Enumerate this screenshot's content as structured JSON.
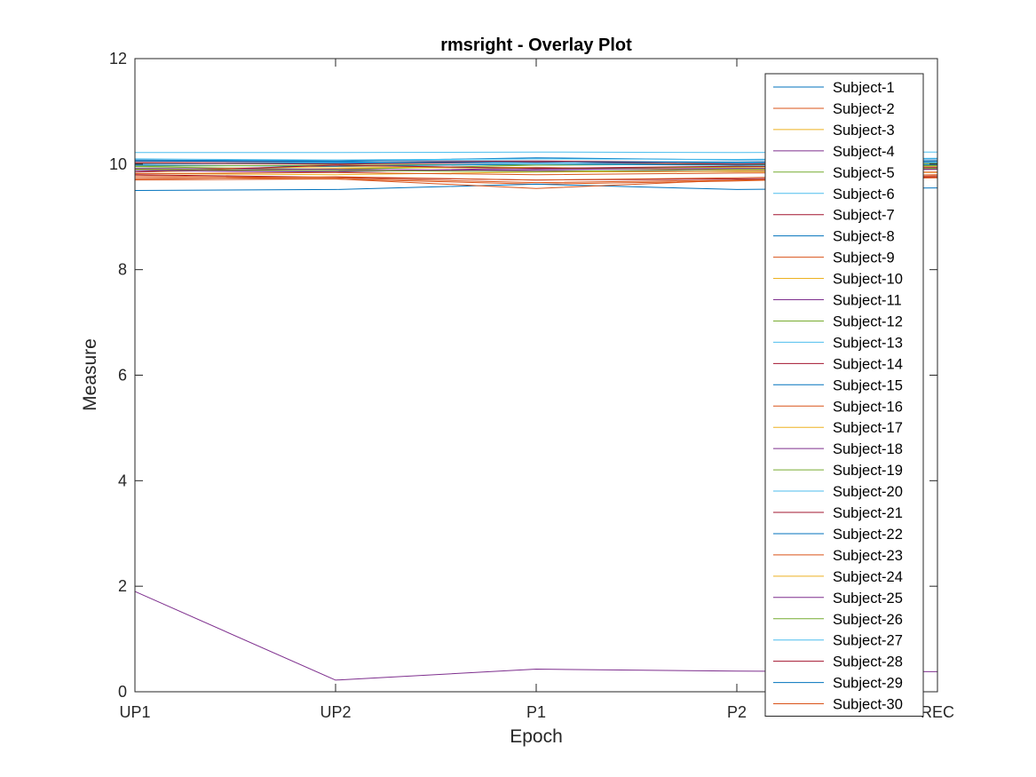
{
  "chart_data": {
    "type": "line",
    "title": "rmsright - Overlay Plot",
    "xlabel": "Epoch",
    "ylabel": "Measure",
    "categories": [
      "UP1",
      "UP2",
      "P1",
      "P2",
      "REC"
    ],
    "ylim": [
      0,
      12
    ],
    "yticks": [
      0,
      2,
      4,
      6,
      8,
      10,
      12
    ],
    "grid": false,
    "legend_position": "top-right",
    "series": [
      {
        "name": "Subject-1",
        "color": "#0072BD",
        "values": [
          10.0,
          10.02,
          10.04,
          10.0,
          10.03
        ]
      },
      {
        "name": "Subject-2",
        "color": "#D95319",
        "values": [
          9.75,
          9.72,
          9.62,
          9.68,
          9.78
        ]
      },
      {
        "name": "Subject-3",
        "color": "#EDB120",
        "values": [
          9.85,
          9.92,
          9.94,
          9.88,
          9.9
        ]
      },
      {
        "name": "Subject-4",
        "color": "#7E2F8E",
        "values": [
          9.88,
          9.85,
          9.93,
          9.9,
          9.92
        ]
      },
      {
        "name": "Subject-5",
        "color": "#77AC30",
        "values": [
          9.95,
          9.9,
          9.98,
          10.0,
          9.97
        ]
      },
      {
        "name": "Subject-6",
        "color": "#4DBEEE",
        "values": [
          10.05,
          10.08,
          10.06,
          10.04,
          10.07
        ]
      },
      {
        "name": "Subject-7",
        "color": "#A2142F",
        "values": [
          9.8,
          9.75,
          9.7,
          9.72,
          9.76
        ]
      },
      {
        "name": "Subject-8",
        "color": "#0072BD",
        "values": [
          9.5,
          9.52,
          9.62,
          9.52,
          9.55
        ]
      },
      {
        "name": "Subject-9",
        "color": "#D95319",
        "values": [
          9.7,
          9.72,
          9.54,
          9.7,
          9.74
        ]
      },
      {
        "name": "Subject-10",
        "color": "#EDB120",
        "values": [
          9.9,
          9.95,
          9.92,
          9.94,
          9.96
        ]
      },
      {
        "name": "Subject-11",
        "color": "#7E2F8E",
        "values": [
          9.92,
          9.9,
          9.88,
          9.86,
          9.9
        ]
      },
      {
        "name": "Subject-12",
        "color": "#77AC30",
        "values": [
          10.02,
          10.0,
          9.98,
          10.03,
          10.01
        ]
      },
      {
        "name": "Subject-13",
        "color": "#4DBEEE",
        "values": [
          10.22,
          10.22,
          10.23,
          10.22,
          10.23
        ]
      },
      {
        "name": "Subject-14",
        "color": "#A2142F",
        "values": [
          10.05,
          10.04,
          10.06,
          10.03,
          10.04
        ]
      },
      {
        "name": "Subject-15",
        "color": "#0072BD",
        "values": [
          9.98,
          9.96,
          10.0,
          9.98,
          9.99
        ]
      },
      {
        "name": "Subject-16",
        "color": "#D95319",
        "values": [
          9.78,
          9.74,
          9.65,
          9.7,
          9.75
        ]
      },
      {
        "name": "Subject-17",
        "color": "#EDB120",
        "values": [
          9.82,
          9.8,
          9.85,
          9.86,
          9.84
        ]
      },
      {
        "name": "Subject-18",
        "color": "#7E2F8E",
        "values": [
          1.9,
          0.22,
          0.43,
          0.39,
          0.38
        ]
      },
      {
        "name": "Subject-19",
        "color": "#77AC30",
        "values": [
          9.96,
          9.98,
          9.92,
          9.95,
          9.97
        ]
      },
      {
        "name": "Subject-20",
        "color": "#4DBEEE",
        "values": [
          10.0,
          10.04,
          10.0,
          10.02,
          10.04
        ]
      },
      {
        "name": "Subject-21",
        "color": "#A2142F",
        "values": [
          9.85,
          9.98,
          9.92,
          9.96,
          9.94
        ]
      },
      {
        "name": "Subject-22",
        "color": "#0072BD",
        "values": [
          10.08,
          10.06,
          10.12,
          10.08,
          10.1
        ]
      },
      {
        "name": "Subject-23",
        "color": "#D95319",
        "values": [
          9.72,
          9.76,
          9.7,
          9.74,
          9.8
        ]
      },
      {
        "name": "Subject-24",
        "color": "#EDB120",
        "values": [
          0.0,
          0.0,
          0.0,
          0.0,
          0.0
        ]
      },
      {
        "name": "Subject-25",
        "color": "#7E2F8E",
        "values": [
          9.88,
          9.86,
          9.9,
          9.92,
          9.91
        ]
      },
      {
        "name": "Subject-26",
        "color": "#77AC30",
        "values": [
          9.9,
          9.88,
          9.86,
          9.9,
          9.92
        ]
      },
      {
        "name": "Subject-27",
        "color": "#4DBEEE",
        "values": [
          10.1,
          10.08,
          10.1,
          10.09,
          10.11
        ]
      },
      {
        "name": "Subject-28",
        "color": "#A2142F",
        "values": [
          10.02,
          10.0,
          10.04,
          10.0,
          10.06
        ]
      },
      {
        "name": "Subject-29",
        "color": "#0072BD",
        "values": [
          10.06,
          10.05,
          10.03,
          10.04,
          10.06
        ]
      },
      {
        "name": "Subject-30",
        "color": "#D95319",
        "values": [
          9.82,
          9.84,
          9.8,
          9.83,
          9.85
        ]
      }
    ]
  }
}
